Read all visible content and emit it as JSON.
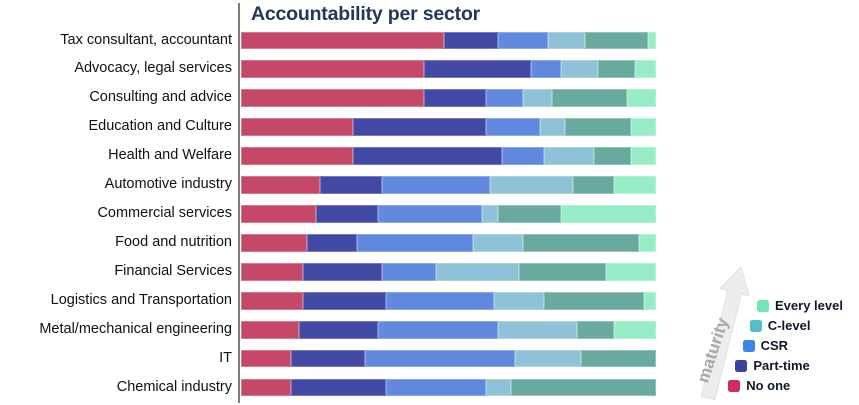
{
  "chart": {
    "title": "Accountability per sector",
    "maturity_label": "maturity",
    "legend": [
      {
        "key": "every_level_light",
        "label": "Every level",
        "color": "#70e6b2"
      },
      {
        "key": "c_level",
        "label": "C-level",
        "color": "#55bcc8"
      },
      {
        "key": "csr",
        "label": "CSR",
        "color": "#3e85e8"
      },
      {
        "key": "part_time",
        "label": "Part-time",
        "color": "#3a42a0"
      },
      {
        "key": "no_one",
        "label": "No one",
        "color": "#d12a5e"
      }
    ],
    "bar_palette": {
      "no_one": "#c54868",
      "part_time": "#4149a5",
      "csr": "#6289e0",
      "c_level": "#8fc2d6",
      "every_level_dark": "#68ab9e",
      "every_level_light": "#97edc5"
    },
    "segment_order": [
      "no_one",
      "part_time",
      "csr",
      "c_level",
      "every_level_dark",
      "every_level_light"
    ],
    "bars": [
      {
        "sector": "Tax consultant, accountant",
        "values": {
          "no_one": 49,
          "part_time": 13,
          "csr": 12,
          "c_level": 9,
          "every_level_dark": 15,
          "every_level_light": 2
        }
      },
      {
        "sector": "Advocacy, legal services",
        "values": {
          "no_one": 44,
          "part_time": 26,
          "csr": 7,
          "c_level": 9,
          "every_level_dark": 9,
          "every_level_light": 5
        }
      },
      {
        "sector": "Consulting and advice",
        "values": {
          "no_one": 44,
          "part_time": 15,
          "csr": 9,
          "c_level": 7,
          "every_level_dark": 18,
          "every_level_light": 7
        }
      },
      {
        "sector": "Education and Culture",
        "values": {
          "no_one": 27,
          "part_time": 32,
          "csr": 13,
          "c_level": 6,
          "every_level_dark": 16,
          "every_level_light": 6
        }
      },
      {
        "sector": "Health and Welfare",
        "values": {
          "no_one": 27,
          "part_time": 36,
          "csr": 10,
          "c_level": 12,
          "every_level_dark": 9,
          "every_level_light": 6
        }
      },
      {
        "sector": "Automotive industry",
        "values": {
          "no_one": 19,
          "part_time": 15,
          "csr": 26,
          "c_level": 20,
          "every_level_dark": 10,
          "every_level_light": 10
        }
      },
      {
        "sector": "Commercial services",
        "values": {
          "no_one": 18,
          "part_time": 15,
          "csr": 25,
          "c_level": 4,
          "every_level_dark": 15,
          "every_level_light": 23
        }
      },
      {
        "sector": "Food and nutrition",
        "values": {
          "no_one": 16,
          "part_time": 12,
          "csr": 28,
          "c_level": 12,
          "every_level_dark": 28,
          "every_level_light": 4
        }
      },
      {
        "sector": "Financial Services",
        "values": {
          "no_one": 15,
          "part_time": 19,
          "csr": 13,
          "c_level": 20,
          "every_level_dark": 21,
          "every_level_light": 12
        }
      },
      {
        "sector": "Logistics and Transportation",
        "values": {
          "no_one": 15,
          "part_time": 20,
          "csr": 26,
          "c_level": 12,
          "every_level_dark": 24,
          "every_level_light": 3
        }
      },
      {
        "sector": "Metal/mechanical engineering",
        "values": {
          "no_one": 14,
          "part_time": 19,
          "csr": 29,
          "c_level": 19,
          "every_level_dark": 9,
          "every_level_light": 10
        }
      },
      {
        "sector": "IT",
        "values": {
          "no_one": 12,
          "part_time": 18,
          "csr": 36,
          "c_level": 16,
          "every_level_dark": 18,
          "every_level_light": 0
        }
      },
      {
        "sector": "Chemical industry",
        "values": {
          "no_one": 12,
          "part_time": 23,
          "csr": 24,
          "c_level": 6,
          "every_level_dark": 35,
          "every_level_light": 0
        }
      }
    ]
  },
  "chart_data": {
    "type": "bar",
    "orientation": "horizontal",
    "stacked": true,
    "units": "percent of respondents (values estimated from 100%-stacked bars)",
    "title": "Accountability per sector",
    "categories": [
      "Tax consultant, accountant",
      "Advocacy, legal services",
      "Consulting and advice",
      "Education and Culture",
      "Health and Welfare",
      "Automotive industry",
      "Commercial services",
      "Food and nutrition",
      "Financial Services",
      "Logistics and Transportation",
      "Metal/mechanical engineering",
      "IT",
      "Chemical industry"
    ],
    "series": [
      {
        "name": "No one",
        "color": "#c54868",
        "values": [
          49,
          44,
          44,
          27,
          27,
          19,
          18,
          16,
          15,
          15,
          14,
          12,
          12
        ]
      },
      {
        "name": "Part-time",
        "color": "#4149a5",
        "values": [
          13,
          26,
          15,
          32,
          36,
          15,
          15,
          12,
          19,
          20,
          19,
          18,
          23
        ]
      },
      {
        "name": "CSR",
        "color": "#6289e0",
        "values": [
          12,
          7,
          9,
          13,
          10,
          26,
          25,
          28,
          13,
          26,
          29,
          36,
          24
        ]
      },
      {
        "name": "C-level",
        "color": "#8fc2d6",
        "values": [
          9,
          9,
          7,
          6,
          12,
          20,
          4,
          12,
          20,
          12,
          19,
          16,
          6
        ]
      },
      {
        "name": "Every level (dark)",
        "color": "#68ab9e",
        "values": [
          15,
          9,
          18,
          16,
          9,
          10,
          15,
          28,
          21,
          24,
          9,
          18,
          35
        ]
      },
      {
        "name": "Every level (light)",
        "color": "#97edc5",
        "values": [
          2,
          5,
          7,
          6,
          6,
          10,
          23,
          4,
          12,
          3,
          10,
          0,
          0
        ]
      }
    ],
    "legend_entries": [
      "Every level",
      "C-level",
      "CSR",
      "Part-time",
      "No one"
    ],
    "legend_position": "bottom-right, diagonally staggered along a gray 'maturity' arrow pointing up-right",
    "annotations": [
      "maturity"
    ],
    "xlim": [
      0,
      100
    ],
    "grid": false,
    "axis_tick_labels": "none shown"
  }
}
